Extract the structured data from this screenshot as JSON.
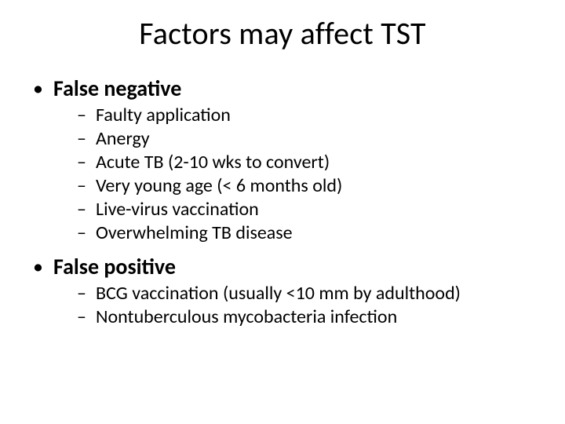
{
  "title": "Factors may affect TST",
  "sections": [
    {
      "heading": "False negative",
      "items": [
        "Faulty application",
        "Anergy",
        "Acute TB (2-10 wks to convert)",
        "Very young age (< 6 months old)",
        "Live-virus vaccination",
        "Overwhelming TB disease"
      ]
    },
    {
      "heading": "False positive",
      "items": [
        "BCG vaccination (usually <10 mm by adulthood)",
        "Nontuberculous mycobacteria infection"
      ]
    }
  ],
  "style": {
    "background_color": "#ffffff",
    "text_color": "#000000",
    "title_fontsize_pt": 40,
    "heading_fontsize_pt": 28,
    "body_fontsize_pt": 24,
    "font_family": "Calibri",
    "bullet_top": "•",
    "bullet_sub": "–"
  }
}
